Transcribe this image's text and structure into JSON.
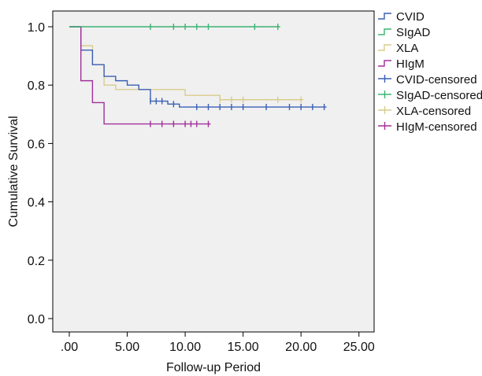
{
  "chart_data": {
    "type": "line",
    "subtype": "kaplan-meier step curves",
    "xlabel": "Follow-up Period",
    "ylabel": "Cumulative Survival",
    "xlim": [
      0,
      25
    ],
    "ylim": [
      0,
      1
    ],
    "x_ticks": [
      0,
      5,
      10,
      15,
      20,
      25
    ],
    "x_tick_labels": [
      ".00",
      "5.00",
      "10.00",
      "15.00",
      "20.00",
      "25.00"
    ],
    "y_ticks": [
      0,
      0.2,
      0.4,
      0.6,
      0.8,
      1.0
    ],
    "y_tick_labels": [
      "0.0",
      "0.2",
      "0.4",
      "0.6",
      "0.8",
      "1.0"
    ],
    "grid": false,
    "background": "#f0f0f0",
    "legend_position": "right-top",
    "series": [
      {
        "name": "CVID",
        "censored_label": "CVID-censored",
        "color": "#3a5fb5",
        "steps": [
          [
            0,
            1.0
          ],
          [
            1,
            0.92
          ],
          [
            2,
            0.87
          ],
          [
            3,
            0.83
          ],
          [
            4,
            0.815
          ],
          [
            5,
            0.8
          ],
          [
            6,
            0.785
          ],
          [
            7,
            0.745
          ],
          [
            8.5,
            0.735
          ],
          [
            9.5,
            0.725
          ],
          [
            22.2,
            0.725
          ]
        ],
        "censored": [
          7,
          7.5,
          8,
          9,
          11,
          12,
          13,
          14,
          15,
          17,
          19,
          20,
          21,
          22
        ]
      },
      {
        "name": "SIgAD",
        "censored_label": "SIgAD-censored",
        "color": "#3cb371",
        "steps": [
          [
            0,
            1.0
          ],
          [
            18.2,
            1.0
          ]
        ],
        "censored": [
          7,
          9,
          10,
          11,
          12,
          16,
          18
        ]
      },
      {
        "name": "XLA",
        "censored_label": "XLA-censored",
        "color": "#d8cc8c",
        "steps": [
          [
            0,
            1.0
          ],
          [
            1,
            0.935
          ],
          [
            2,
            0.87
          ],
          [
            3,
            0.8
          ],
          [
            4,
            0.785
          ],
          [
            10,
            0.765
          ],
          [
            13,
            0.75
          ],
          [
            20.2,
            0.75
          ]
        ],
        "censored": [
          13,
          14,
          15,
          18,
          20
        ]
      },
      {
        "name": "HIgM",
        "censored_label": "HIgM-censored",
        "color": "#a0309a",
        "steps": [
          [
            0,
            1.0
          ],
          [
            1,
            0.815
          ],
          [
            2,
            0.74
          ],
          [
            3,
            0.667
          ],
          [
            12.2,
            0.667
          ]
        ],
        "censored": [
          7,
          8,
          9,
          10,
          10.5,
          11,
          12
        ]
      }
    ]
  }
}
